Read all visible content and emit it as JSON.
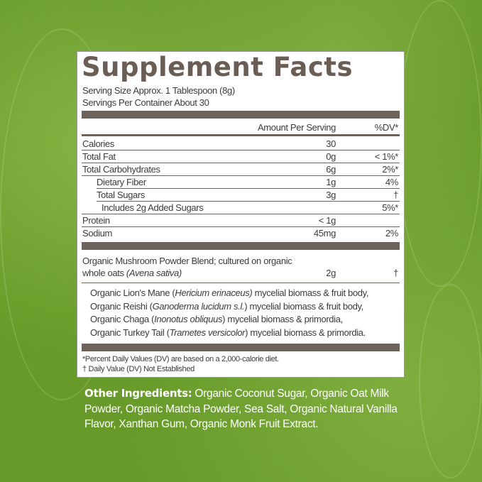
{
  "title": "Supplement Facts",
  "serving_size": "Serving Size Approx. 1 Tablespoon (8g)",
  "servings_per_container": "Servings Per Container About 30",
  "header": {
    "amount": "Amount Per Serving",
    "dv": "%DV*"
  },
  "rows": [
    {
      "label": "Calories",
      "amount": "30",
      "dv": ""
    },
    {
      "label": "Total Fat",
      "amount": "0g",
      "dv": "< 1%*"
    },
    {
      "label": "Total Carbohydrates",
      "amount": "6g",
      "dv": "2%*"
    },
    {
      "label": "Dietary Fiber",
      "amount": "1g",
      "dv": "4%"
    },
    {
      "label": "Total Sugars",
      "amount": "3g",
      "dv": "†"
    },
    {
      "label": "Includes 2g Added Sugars",
      "amount": "",
      "dv": "5%*"
    },
    {
      "label": "Protein",
      "amount": "< 1g",
      "dv": ""
    },
    {
      "label": "Sodium",
      "amount": "45mg",
      "dv": "2%"
    }
  ],
  "blend": {
    "line1": "Organic Mushroom Powder Blend; cultured on organic",
    "line2": "whole oats",
    "line2_italic": "(Avena sativa)",
    "amount": "2g",
    "dv": "†"
  },
  "mushrooms": [
    {
      "name": "Organic Lion's Mane (",
      "latin": "Hericium erinaceus)",
      "rest": " mycelial biomass & fruit body,"
    },
    {
      "name": "Organic Reishi (",
      "latin": "Ganoderma lucidum s.l.",
      "rest": ")  mycelial biomass & fruit body,"
    },
    {
      "name": "Organic Chaga (",
      "latin": "Inonotus obliquus",
      "rest": ") mycelial biomass & primordia,"
    },
    {
      "name": "Organic Turkey Tail (",
      "latin": "Trametes versicolor",
      "rest": ") mycelial biomass & primordia."
    }
  ],
  "footnotes": [
    "*Percent Daily Values (DV) are based on a 2,000-calorie diet.",
    "† Daily Value (DV) Not Established"
  ],
  "other_ingredients": {
    "label": "Other Ingredients:",
    "text": " Organic Coconut Sugar, Organic Oat Milk Powder, Organic Matcha Powder, Sea Salt, Organic Natural Vanilla Flavor, Xanthan Gum, Organic Monk Fruit Extract."
  },
  "colors": {
    "background": "#679a28",
    "label_brown": "#6e635b"
  }
}
